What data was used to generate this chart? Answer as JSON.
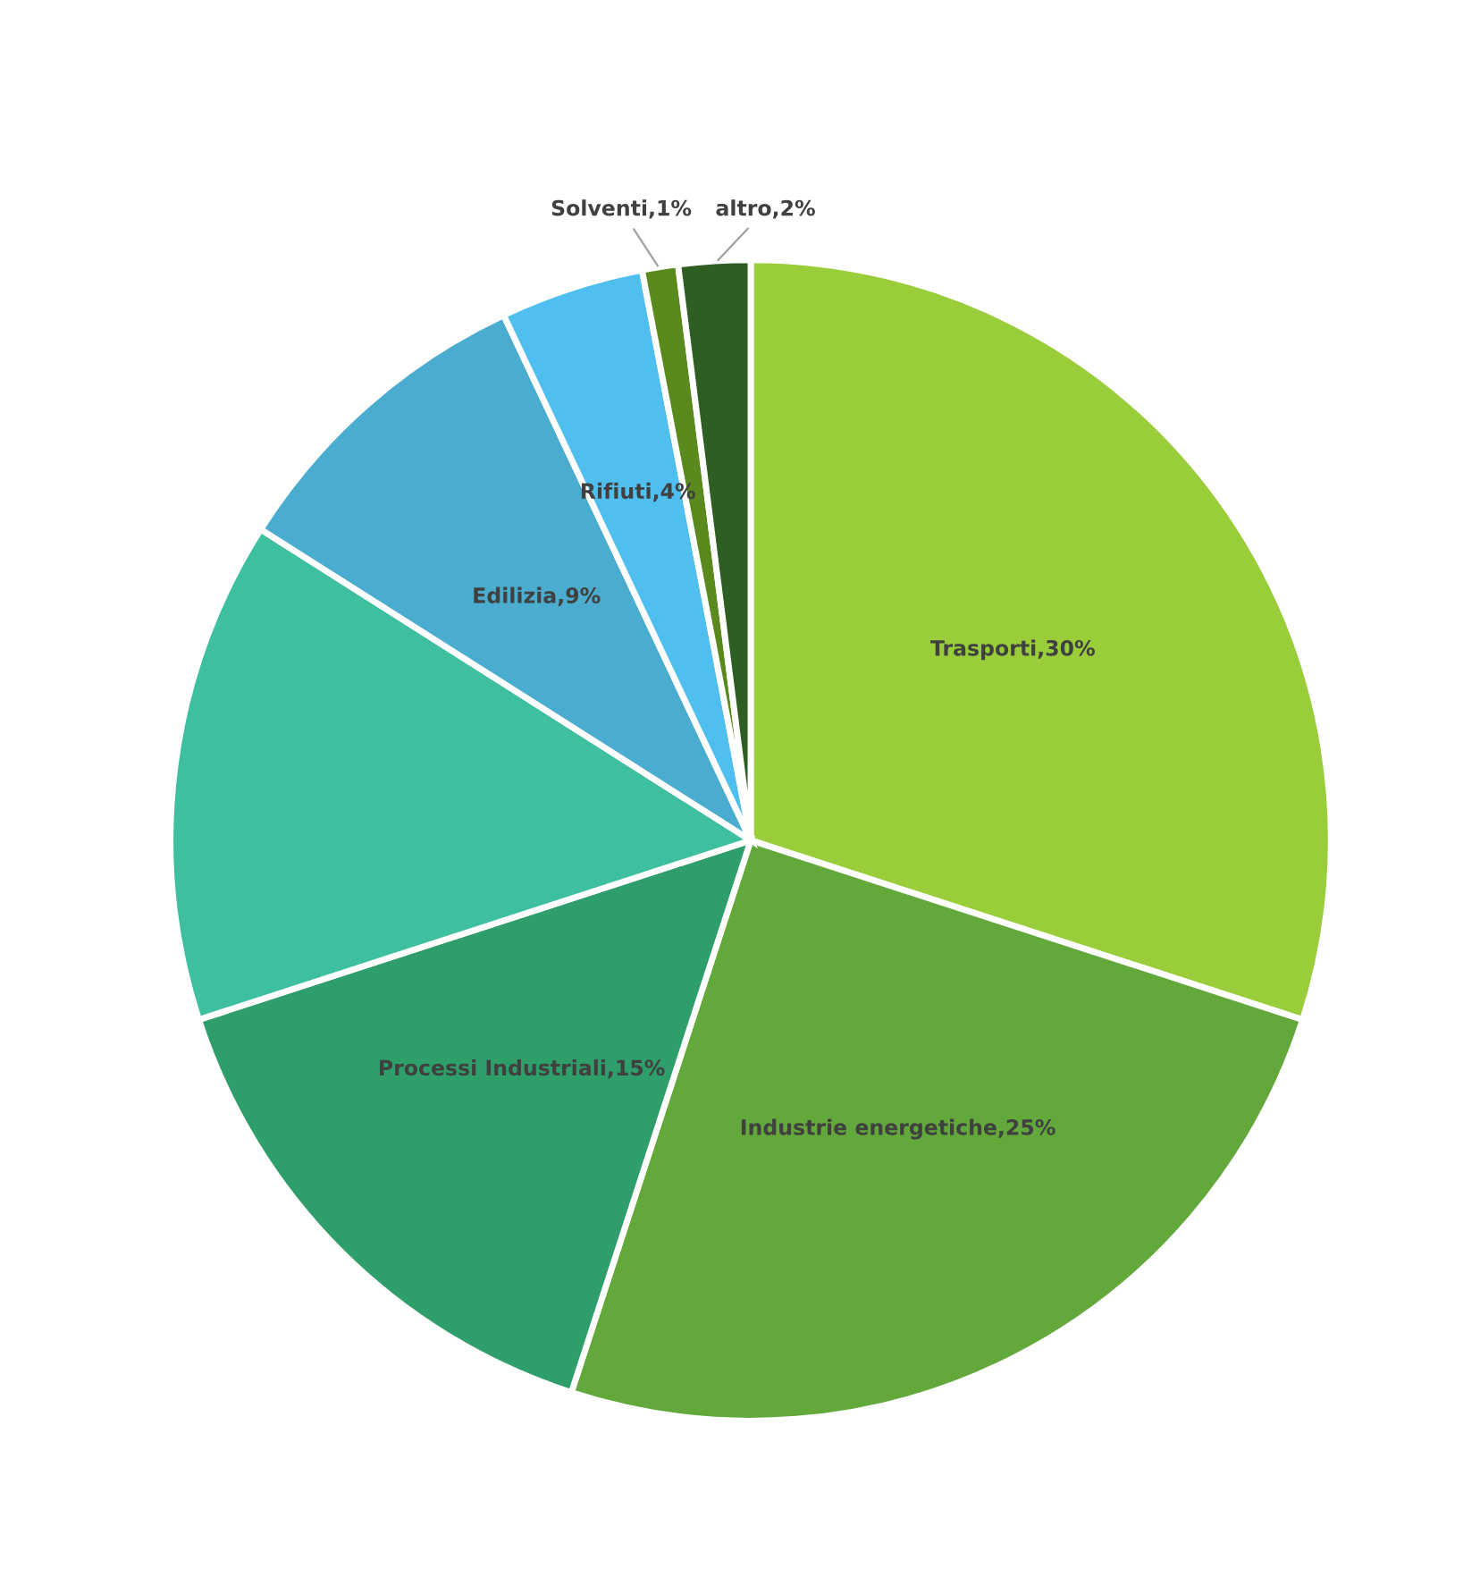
{
  "chart_data": {
    "type": "pie",
    "categories": [
      "Trasporti",
      "Industrie energetiche",
      "Processi Industriali",
      null,
      "Edilizia",
      "Rifiuti",
      "Solventi",
      "altro"
    ],
    "values": [
      30,
      25,
      15,
      14,
      9,
      4,
      1,
      2
    ],
    "value_labels": [
      "30%",
      "25%",
      "15%",
      null,
      "9%",
      "4%",
      "1%",
      "2%"
    ],
    "colors": [
      "#9acd3a",
      "#62a83a",
      "#2e9e6a",
      "#3dbfa0",
      "#4aaccf",
      "#4fbff0",
      "#5a8a1e",
      "#2e5e22"
    ],
    "legend": false
  }
}
